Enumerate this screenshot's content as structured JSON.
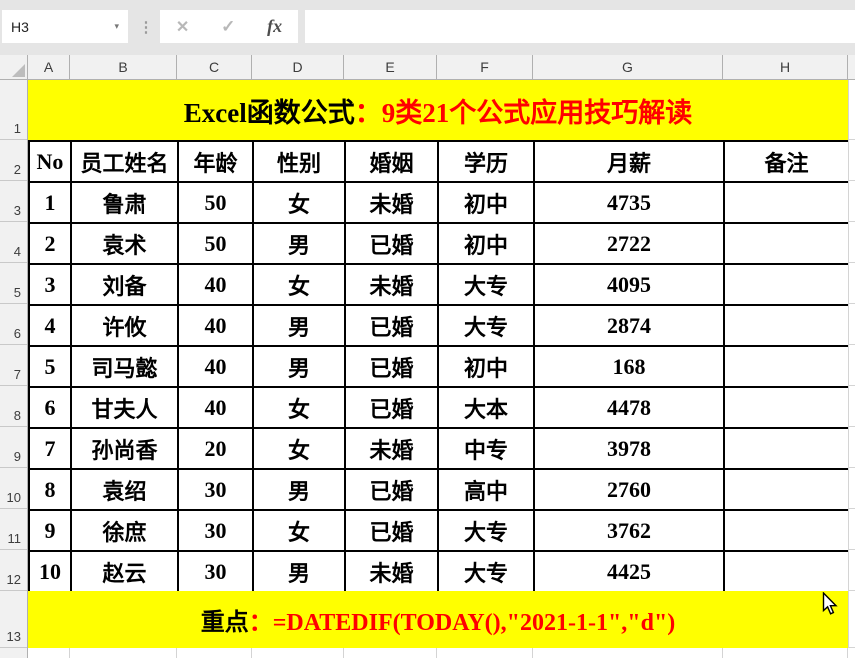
{
  "toolbar": {
    "name_box_value": "H3",
    "formula_bar_value": "",
    "icons": {
      "dropdown": "▾",
      "separator": "⋮",
      "cancel": "✕",
      "enter": "✓",
      "fx": "fx"
    }
  },
  "sheet": {
    "column_letters": [
      "A",
      "B",
      "C",
      "D",
      "E",
      "F",
      "G",
      "H"
    ],
    "row_numbers": [
      "1",
      "2",
      "3",
      "4",
      "5",
      "6",
      "7",
      "8",
      "9",
      "10",
      "11",
      "12",
      "13"
    ],
    "title": {
      "black": "Excel函数公式",
      "red": "：9类21个公式应用技巧解读"
    },
    "table": {
      "headers": [
        "No",
        "员工姓名",
        "年龄",
        "性别",
        "婚姻",
        "学历",
        "月薪",
        "备注"
      ],
      "rows": [
        [
          "1",
          "鲁肃",
          "50",
          "女",
          "未婚",
          "初中",
          "4735",
          ""
        ],
        [
          "2",
          "袁术",
          "50",
          "男",
          "已婚",
          "初中",
          "2722",
          ""
        ],
        [
          "3",
          "刘备",
          "40",
          "女",
          "未婚",
          "大专",
          "4095",
          ""
        ],
        [
          "4",
          "许攸",
          "40",
          "男",
          "已婚",
          "大专",
          "2874",
          ""
        ],
        [
          "5",
          "司马懿",
          "40",
          "男",
          "已婚",
          "初中",
          "168",
          ""
        ],
        [
          "6",
          "甘夫人",
          "40",
          "女",
          "已婚",
          "大本",
          "4478",
          ""
        ],
        [
          "7",
          "孙尚香",
          "20",
          "女",
          "未婚",
          "中专",
          "3978",
          ""
        ],
        [
          "8",
          "袁绍",
          "30",
          "男",
          "已婚",
          "高中",
          "2760",
          ""
        ],
        [
          "9",
          "徐庶",
          "30",
          "女",
          "已婚",
          "大专",
          "3762",
          ""
        ],
        [
          "10",
          "赵云",
          "30",
          "男",
          "未婚",
          "大专",
          "4425",
          ""
        ]
      ]
    },
    "note": {
      "black": "重点",
      "red": "：=DATEDIF(TODAY(),\"2021-1-1\",\"d\")"
    }
  },
  "colors": {
    "highlight_yellow": "#ffff00",
    "accent_red": "#ff0000"
  }
}
